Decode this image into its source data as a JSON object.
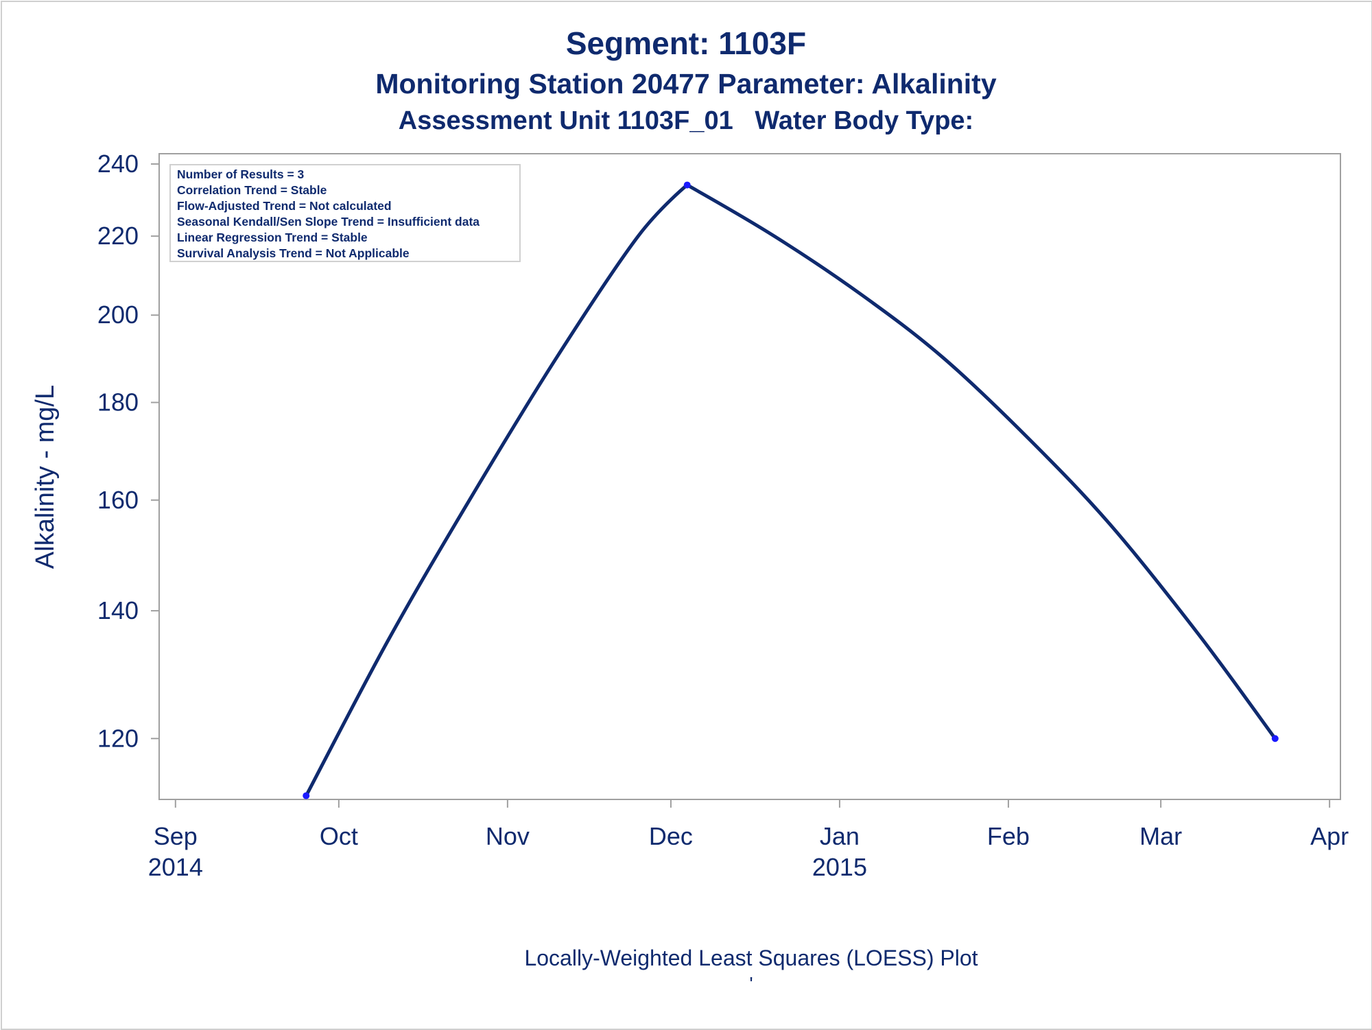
{
  "titles": {
    "line1": "Segment: 1103F",
    "line2": "Monitoring Station 20477 Parameter: Alkalinity",
    "line3": "Assessment Unit 1103F_01   Water Body Type:"
  },
  "footnote": {
    "text": "Locally-Weighted Least Squares (LOESS) Plot",
    "mark": "'"
  },
  "stats_box": [
    "Number of Results = 3",
    "Correlation Trend = Stable",
    "Flow-Adjusted Trend = Not calculated",
    "Seasonal Kendall/Sen Slope Trend = Insufficient data",
    "Linear Regression Trend = Stable",
    "Survival Analysis Trend = Not Applicable"
  ],
  "colors": {
    "text": "#0f2a6e",
    "line": "#0f2a6e",
    "marker": "#1a1aff",
    "frame": "#a0a0a0"
  },
  "chart_data": {
    "type": "line",
    "title": "Segment: 1103F",
    "xlabel": "",
    "ylabel": "Alkalinity - mg/L",
    "y_scale": "log",
    "ylim": [
      111.5,
      243
    ],
    "xlim": [
      "2014-08-29",
      "2015-04-03"
    ],
    "grid": false,
    "y_ticks": [
      120,
      140,
      160,
      180,
      200,
      220,
      240
    ],
    "x_ticks": [
      {
        "date": "2014-09-01",
        "label": "Sep",
        "year": "2014"
      },
      {
        "date": "2014-10-01",
        "label": "Oct",
        "year": ""
      },
      {
        "date": "2014-11-01",
        "label": "Nov",
        "year": ""
      },
      {
        "date": "2014-12-01",
        "label": "Dec",
        "year": ""
      },
      {
        "date": "2015-01-01",
        "label": "Jan",
        "year": "2015"
      },
      {
        "date": "2015-02-01",
        "label": "Feb",
        "year": ""
      },
      {
        "date": "2015-03-01",
        "label": "Mar",
        "year": ""
      },
      {
        "date": "2015-04-01",
        "label": "Apr",
        "year": ""
      }
    ],
    "observations": [
      {
        "date": "2014-09-25",
        "value": 112
      },
      {
        "date": "2014-12-04",
        "value": 234
      },
      {
        "date": "2015-03-22",
        "value": 120
      }
    ],
    "loess_curve": [
      {
        "date": "2014-09-25",
        "value": 112
      },
      {
        "date": "2014-10-10",
        "value": 135
      },
      {
        "date": "2014-10-25",
        "value": 160
      },
      {
        "date": "2014-11-10",
        "value": 190
      },
      {
        "date": "2014-11-25",
        "value": 220
      },
      {
        "date": "2014-12-04",
        "value": 234
      },
      {
        "date": "2014-12-20",
        "value": 220
      },
      {
        "date": "2015-01-05",
        "value": 205
      },
      {
        "date": "2015-01-20",
        "value": 190
      },
      {
        "date": "2015-02-05",
        "value": 172
      },
      {
        "date": "2015-02-20",
        "value": 155
      },
      {
        "date": "2015-03-08",
        "value": 136
      },
      {
        "date": "2015-03-22",
        "value": 120
      }
    ]
  }
}
